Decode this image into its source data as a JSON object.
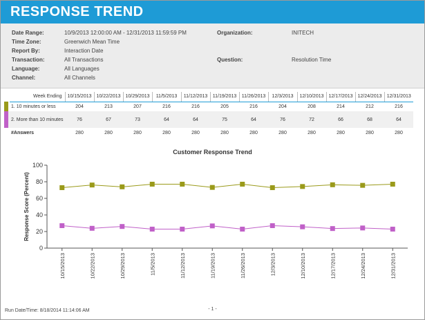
{
  "header": {
    "title": "RESPONSE TREND"
  },
  "params": {
    "date_range_label": "Date Range:",
    "date_range": "10/9/2013 12:00:00 AM - 12/31/2013 11:59:59 PM",
    "time_zone_label": "Time Zone:",
    "time_zone": "Greenwich Mean Time",
    "report_by_label": "Report By:",
    "report_by": "Interaction Date",
    "transaction_label": "Transaction:",
    "transaction": "All Transactions",
    "language_label": "Language:",
    "language": "All Languages",
    "channel_label": "Channel:",
    "channel": "All Channels",
    "organization_label": "Organization:",
    "organization": "INITECH",
    "question_label": "Question:",
    "question": "Resolution Time"
  },
  "table": {
    "week_label": "Week Ending",
    "answers_label": "#Answers",
    "weeks": [
      "10/15/2013",
      "10/22/2013",
      "10/29/2013",
      "11/5/2013",
      "11/12/2013",
      "11/19/2013",
      "11/26/2013",
      "12/3/2013",
      "12/10/2013",
      "12/17/2013",
      "12/24/2013",
      "12/31/2013"
    ],
    "rows": [
      {
        "label": "1. 10 minutes or less",
        "color": "#9a9a1a",
        "values": [
          204,
          213,
          207,
          216,
          216,
          205,
          216,
          204,
          208,
          214,
          212,
          216
        ]
      },
      {
        "label": "2. More than 10 minutes",
        "color": "#c060c8",
        "values": [
          76,
          67,
          73,
          64,
          64,
          75,
          64,
          76,
          72,
          66,
          68,
          64
        ]
      }
    ],
    "answers": [
      280,
      280,
      280,
      280,
      280,
      280,
      280,
      280,
      280,
      280,
      280,
      280
    ]
  },
  "chart_data": {
    "type": "line",
    "title": "Customer Response Trend",
    "xlabel": "",
    "ylabel": "Response Score (Percent)",
    "ylim": [
      0,
      100
    ],
    "yticks": [
      0,
      20,
      40,
      60,
      80,
      100
    ],
    "categories": [
      "10/15/2013",
      "10/22/2013",
      "10/29/2013",
      "11/5/2013",
      "11/12/2013",
      "11/19/2013",
      "11/26/2013",
      "12/3/2013",
      "12/10/2013",
      "12/17/2013",
      "12/24/2013",
      "12/31/2013"
    ],
    "series": [
      {
        "color": "#9a9a1a",
        "values": [
          72.9,
          76.1,
          73.9,
          77.1,
          77.1,
          73.2,
          77.1,
          72.9,
          74.3,
          76.4,
          75.7,
          77.1
        ]
      },
      {
        "color": "#c060c8",
        "values": [
          27.1,
          23.9,
          26.1,
          22.9,
          22.9,
          26.8,
          22.9,
          27.1,
          25.7,
          23.6,
          24.3,
          22.9
        ]
      }
    ]
  },
  "footer": {
    "run_date": "Run Date/Time: 8/18/2014 11:14:06 AM",
    "page": "- 1 -"
  }
}
